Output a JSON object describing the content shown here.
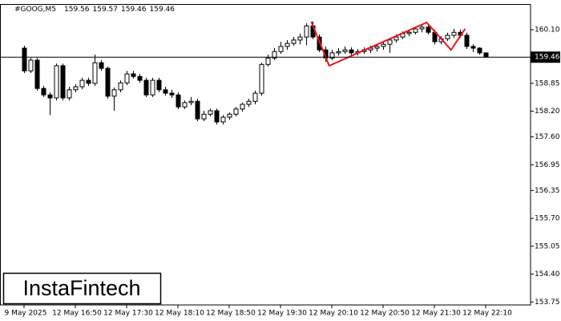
{
  "chart_data": {
    "type": "candlestick",
    "title": "#GOOG,M5",
    "header_values": [
      159.56,
      159.57,
      159.46,
      159.46
    ],
    "watermark": "InstaFintech",
    "categories": [
      "9 May 2025",
      null,
      null,
      null,
      null,
      null,
      null,
      null,
      "12 May 16:50",
      null,
      null,
      null,
      null,
      null,
      null,
      null,
      "12 May 17:30",
      null,
      null,
      null,
      null,
      null,
      null,
      null,
      "12 May 18:10",
      null,
      null,
      null,
      null,
      null,
      null,
      null,
      "12 May 18:50",
      null,
      null,
      null,
      null,
      null,
      null,
      null,
      "12 May 19:30",
      null,
      null,
      null,
      null,
      null,
      null,
      null,
      "12 May 20:10",
      null,
      null,
      null,
      null,
      null,
      null,
      null,
      "12 May 20:50",
      null,
      null,
      null,
      null,
      null,
      null,
      null,
      "12 May 21:30",
      null,
      null,
      null,
      null,
      null,
      null,
      null,
      "12 May 22:10"
    ],
    "open": [
      159.67,
      159.14,
      159.39,
      158.73,
      158.58,
      158.51,
      159.26,
      158.51,
      158.7,
      158.77,
      158.92,
      158.85,
      159.33,
      159.2,
      158.55,
      158.7,
      158.86,
      159.07,
      159.01,
      158.92,
      158.58,
      158.92,
      158.7,
      158.62,
      158.58,
      158.3,
      158.4,
      158.43,
      158.02,
      158.13,
      158.21,
      157.95,
      158.06,
      158.13,
      158.25,
      158.36,
      158.43,
      158.62,
      159.29,
      159.44,
      159.59,
      159.71,
      159.78,
      159.86,
      159.93,
      160.19,
      159.93,
      159.63,
      159.44,
      159.56,
      159.59,
      159.63,
      159.56,
      159.59,
      159.63,
      159.67,
      159.71,
      159.76,
      159.86,
      159.93,
      160.01,
      160.04,
      160.12,
      160.16,
      160.04,
      159.82,
      159.89,
      159.97,
      160.04,
      159.97,
      159.71,
      159.67,
      159.56
    ],
    "high": [
      159.73,
      159.44,
      159.44,
      158.79,
      158.64,
      159.31,
      159.31,
      158.77,
      158.83,
      158.98,
      158.98,
      159.52,
      159.39,
      159.24,
      158.75,
      158.92,
      159.14,
      159.14,
      159.07,
      158.98,
      158.98,
      158.98,
      158.77,
      158.7,
      158.64,
      158.45,
      158.53,
      158.49,
      158.21,
      158.26,
      158.26,
      158.11,
      158.17,
      158.3,
      158.4,
      158.49,
      158.68,
      159.33,
      159.52,
      159.67,
      159.82,
      159.86,
      159.93,
      160.01,
      160.25,
      160.29,
      159.99,
      159.71,
      159.63,
      159.67,
      159.71,
      159.69,
      159.65,
      159.69,
      159.73,
      159.76,
      159.82,
      159.91,
      159.99,
      160.06,
      160.1,
      160.17,
      160.23,
      160.21,
      160.1,
      159.95,
      160.03,
      160.12,
      160.1,
      160.03,
      159.76,
      159.69,
      159.57
    ],
    "low": [
      159.09,
      159.09,
      158.68,
      158.53,
      158.11,
      158.45,
      158.45,
      158.45,
      158.64,
      158.71,
      158.79,
      158.79,
      159.14,
      158.49,
      158.21,
      158.64,
      158.81,
      158.96,
      158.86,
      158.53,
      158.53,
      158.64,
      158.56,
      158.51,
      158.25,
      158.25,
      158.34,
      157.97,
      157.97,
      158.08,
      157.89,
      157.89,
      158.0,
      158.08,
      158.19,
      158.3,
      158.36,
      158.56,
      159.24,
      159.39,
      159.54,
      159.63,
      159.73,
      159.76,
      159.74,
      159.88,
      159.58,
      159.35,
      159.39,
      159.5,
      159.54,
      159.5,
      159.5,
      159.54,
      159.56,
      159.59,
      159.63,
      159.56,
      159.8,
      159.88,
      159.95,
      159.99,
      160.04,
      159.99,
      159.76,
      159.76,
      159.84,
      159.91,
      159.91,
      159.65,
      159.58,
      159.52,
      159.46
    ],
    "close": [
      159.14,
      159.39,
      158.73,
      158.58,
      158.51,
      159.26,
      158.51,
      158.7,
      158.77,
      158.92,
      158.85,
      159.33,
      159.2,
      158.55,
      158.7,
      158.86,
      159.07,
      159.01,
      158.92,
      158.58,
      158.92,
      158.7,
      158.62,
      158.58,
      158.3,
      158.4,
      158.43,
      158.02,
      158.13,
      158.21,
      157.95,
      158.06,
      158.13,
      158.25,
      158.36,
      158.43,
      158.62,
      159.29,
      159.44,
      159.59,
      159.71,
      159.78,
      159.86,
      159.93,
      160.19,
      159.93,
      159.63,
      159.44,
      159.56,
      159.59,
      159.63,
      159.56,
      159.59,
      159.63,
      159.67,
      159.71,
      159.76,
      159.86,
      159.93,
      160.01,
      160.04,
      160.12,
      160.16,
      160.04,
      159.82,
      159.89,
      159.97,
      160.04,
      159.97,
      159.71,
      159.67,
      159.56,
      159.46
    ],
    "up_color": "#ffffff",
    "down_color": "#000000",
    "current_price": 159.46,
    "pattern": {
      "color": "#e8161b",
      "x": [
        44.8,
        47.6,
        62.8,
        66.6,
        68.8
      ],
      "y": [
        160.29,
        159.26,
        160.27,
        159.63,
        160.12
      ]
    },
    "ylim": [
      153.68,
      160.7
    ],
    "yticks": [
      {
        "value": 160.1,
        "label": "160.10"
      },
      158.85,
      {
        "value": 158.2,
        "label": "158.20"
      },
      {
        "value": 157.6,
        "label": "157.60"
      },
      156.95,
      156.35,
      {
        "value": 155.7,
        "label": "155.70"
      },
      155.05,
      {
        "value": 154.4,
        "label": "154.40"
      },
      153.75
    ]
  }
}
